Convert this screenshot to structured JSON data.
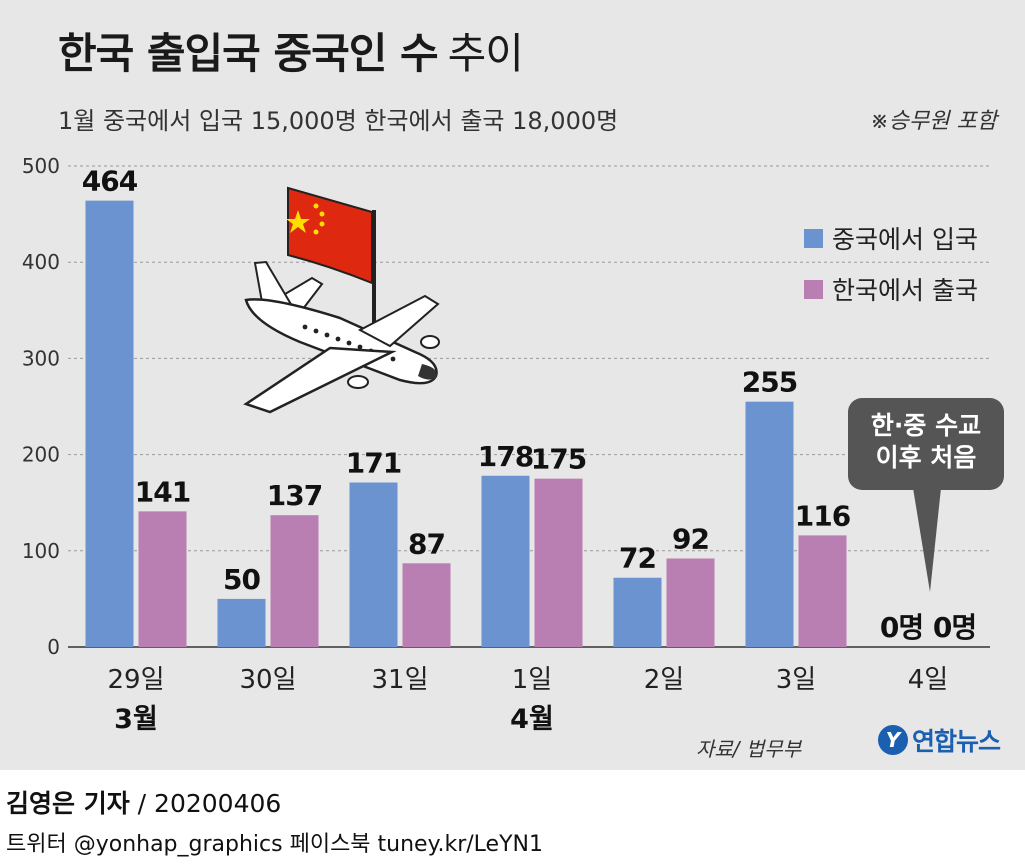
{
  "title": {
    "bold": "한국 출입국 중국인 수",
    "light": "추이"
  },
  "subtitle": "1월 중국에서 입국 15,000명 한국에서 출국 18,000명",
  "note": "※승무원 포함",
  "legend": [
    {
      "label": "중국에서 입국",
      "color": "#6a93cf"
    },
    {
      "label": "한국에서 출국",
      "color": "#b97eb2"
    }
  ],
  "callout": {
    "line1": "한·중 수교",
    "line2": "이후 처음"
  },
  "source": "자료/ 법무부",
  "logo": {
    "mark": "Y",
    "text": "연합뉴스"
  },
  "byline": {
    "name": "김영은 기자",
    "date": "/ 20200406"
  },
  "social": "트위터 @yonhap_graphics  페이스북 tuney.kr/LeYN1",
  "chart_data": {
    "type": "bar",
    "categories": [
      "29일",
      "30일",
      "31일",
      "1일",
      "2일",
      "3일",
      "4일"
    ],
    "month_labels": [
      {
        "index": 0,
        "text": "3월"
      },
      {
        "index": 3,
        "text": "4월"
      }
    ],
    "series": [
      {
        "name": "중국에서 입국",
        "values": [
          464,
          50,
          171,
          178,
          72,
          255,
          0
        ],
        "labels": [
          "464",
          "50",
          "171",
          "178",
          "72",
          "255",
          "0명"
        ],
        "color": "#6a93cf"
      },
      {
        "name": "한국에서 출국",
        "values": [
          141,
          137,
          87,
          175,
          92,
          116,
          0
        ],
        "labels": [
          "141",
          "137",
          "87",
          "175",
          "92",
          "116",
          "0명"
        ],
        "color": "#b97eb2"
      }
    ],
    "yticks": [
      0,
      100,
      200,
      300,
      400,
      500
    ],
    "ylim": [
      0,
      500
    ],
    "grid": true,
    "legend_position": "right"
  }
}
